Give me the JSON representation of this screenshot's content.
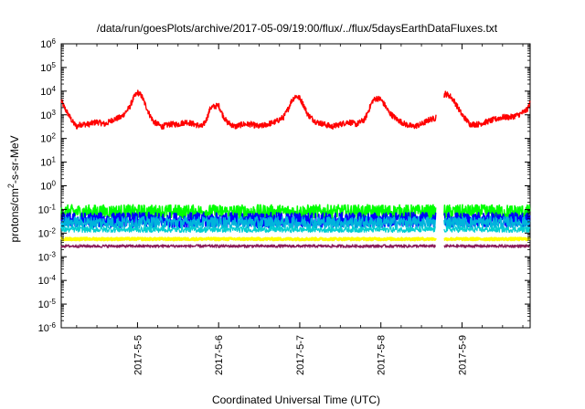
{
  "chart_data": {
    "type": "line",
    "title": "/data/run/goesPlots/archive/2017-05-09/19:00/flux/../flux/5daysEarthDataFluxes.txt",
    "xlabel": "Coordinated Universal Time (UTC)",
    "ylabel": "protons/cm²-s-sr-MeV",
    "y_scale": "log",
    "ylim_exp": [
      -6,
      6
    ],
    "y_tick_labels": [
      {
        "base": "10",
        "exp": "-6"
      },
      {
        "base": "10",
        "exp": "-5"
      },
      {
        "base": "10",
        "exp": "-4"
      },
      {
        "base": "10",
        "exp": "-3"
      },
      {
        "base": "10",
        "exp": "-2"
      },
      {
        "base": "10",
        "exp": "-1"
      },
      {
        "base": "10",
        "exp": "0"
      },
      {
        "base": "10",
        "exp": "1"
      },
      {
        "base": "10",
        "exp": "2"
      },
      {
        "base": "10",
        "exp": "3"
      },
      {
        "base": "10",
        "exp": "4"
      },
      {
        "base": "10",
        "exp": "5"
      },
      {
        "base": "10",
        "exp": "6"
      }
    ],
    "xlim_days": [
      4.06,
      9.84
    ],
    "x_ticks": [
      {
        "label": "2017-5-5",
        "day": 5.0
      },
      {
        "label": "2017-5-6",
        "day": 6.0
      },
      {
        "label": "2017-5-7",
        "day": 7.0
      },
      {
        "label": "2017-5-8",
        "day": 8.0
      },
      {
        "label": "2017-5-9",
        "day": 9.0
      }
    ],
    "data_gap_days": [
      8.68,
      8.78
    ],
    "grid": false,
    "series": [
      {
        "color": "#ff0000",
        "note_level": "log10 flux",
        "x_days": [
          4.06,
          4.1,
          4.15,
          4.2,
          4.25,
          4.3,
          4.4,
          4.5,
          4.6,
          4.7,
          4.8,
          4.9,
          4.95,
          5.0,
          5.05,
          5.1,
          5.15,
          5.2,
          5.3,
          5.4,
          5.5,
          5.6,
          5.7,
          5.8,
          5.85,
          5.9,
          6.0,
          6.05,
          6.1,
          6.2,
          6.3,
          6.4,
          6.5,
          6.6,
          6.7,
          6.8,
          6.85,
          6.9,
          6.95,
          7.0,
          7.05,
          7.1,
          7.2,
          7.3,
          7.4,
          7.5,
          7.6,
          7.7,
          7.8,
          7.85,
          7.9,
          7.95,
          8.0,
          8.05,
          8.1,
          8.2,
          8.3,
          8.4,
          8.5,
          8.6,
          8.67,
          8.79,
          8.85,
          8.9,
          8.95,
          9.0,
          9.05,
          9.1,
          9.2,
          9.3,
          9.4,
          9.5,
          9.6,
          9.7,
          9.8,
          9.84
        ],
        "log_values": [
          3.6,
          3.3,
          3.0,
          2.7,
          2.5,
          2.6,
          2.6,
          2.7,
          2.6,
          2.8,
          2.9,
          3.3,
          3.7,
          3.95,
          3.8,
          3.4,
          3.0,
          2.7,
          2.5,
          2.6,
          2.6,
          2.7,
          2.6,
          2.5,
          2.8,
          3.3,
          3.4,
          3.0,
          2.7,
          2.5,
          2.6,
          2.6,
          2.5,
          2.6,
          2.7,
          2.9,
          3.2,
          3.6,
          3.8,
          3.7,
          3.4,
          3.0,
          2.7,
          2.6,
          2.5,
          2.6,
          2.7,
          2.6,
          2.8,
          3.2,
          3.6,
          3.7,
          3.65,
          3.4,
          3.1,
          2.8,
          2.6,
          2.5,
          2.6,
          2.8,
          2.85,
          3.9,
          3.8,
          3.6,
          3.3,
          3.0,
          2.8,
          2.6,
          2.6,
          2.7,
          2.8,
          2.9,
          2.9,
          3.0,
          3.2,
          3.5
        ]
      },
      {
        "color": "#00ff00",
        "note_level": "log10 flux",
        "x_days": [
          4.06,
          8.67,
          8.79,
          9.84
        ],
        "log_values": [
          -1.1,
          -1.1,
          -1.1,
          -1.1
        ]
      },
      {
        "color": "#0000ff",
        "note_level": "log10 flux",
        "x_days": [
          4.06,
          8.67,
          8.79,
          9.84
        ],
        "log_values": [
          -1.45,
          -1.45,
          -1.45,
          -1.45
        ]
      },
      {
        "color": "#00b4dc",
        "note_level": "log10 flux",
        "x_days": [
          4.06,
          8.67,
          8.79,
          9.84
        ],
        "log_values": [
          -1.55,
          -1.55,
          -1.55,
          -1.55
        ]
      },
      {
        "color": "#00ced1",
        "note_level": "log10 flux",
        "x_days": [
          4.06,
          8.67,
          8.79,
          9.84
        ],
        "log_values": [
          -1.85,
          -1.85,
          -1.85,
          -1.85
        ]
      },
      {
        "color": "#ffff00",
        "note_level": "log10 flux",
        "x_days": [
          4.06,
          8.67,
          8.79,
          9.84
        ],
        "log_values": [
          -2.25,
          -2.25,
          -2.25,
          -2.25
        ]
      },
      {
        "color": "#8b1e5a",
        "note_level": "log10 flux",
        "x_days": [
          4.06,
          8.67,
          8.79,
          9.84
        ],
        "log_values": [
          -2.55,
          -2.55,
          -2.55,
          -2.55
        ]
      }
    ]
  }
}
